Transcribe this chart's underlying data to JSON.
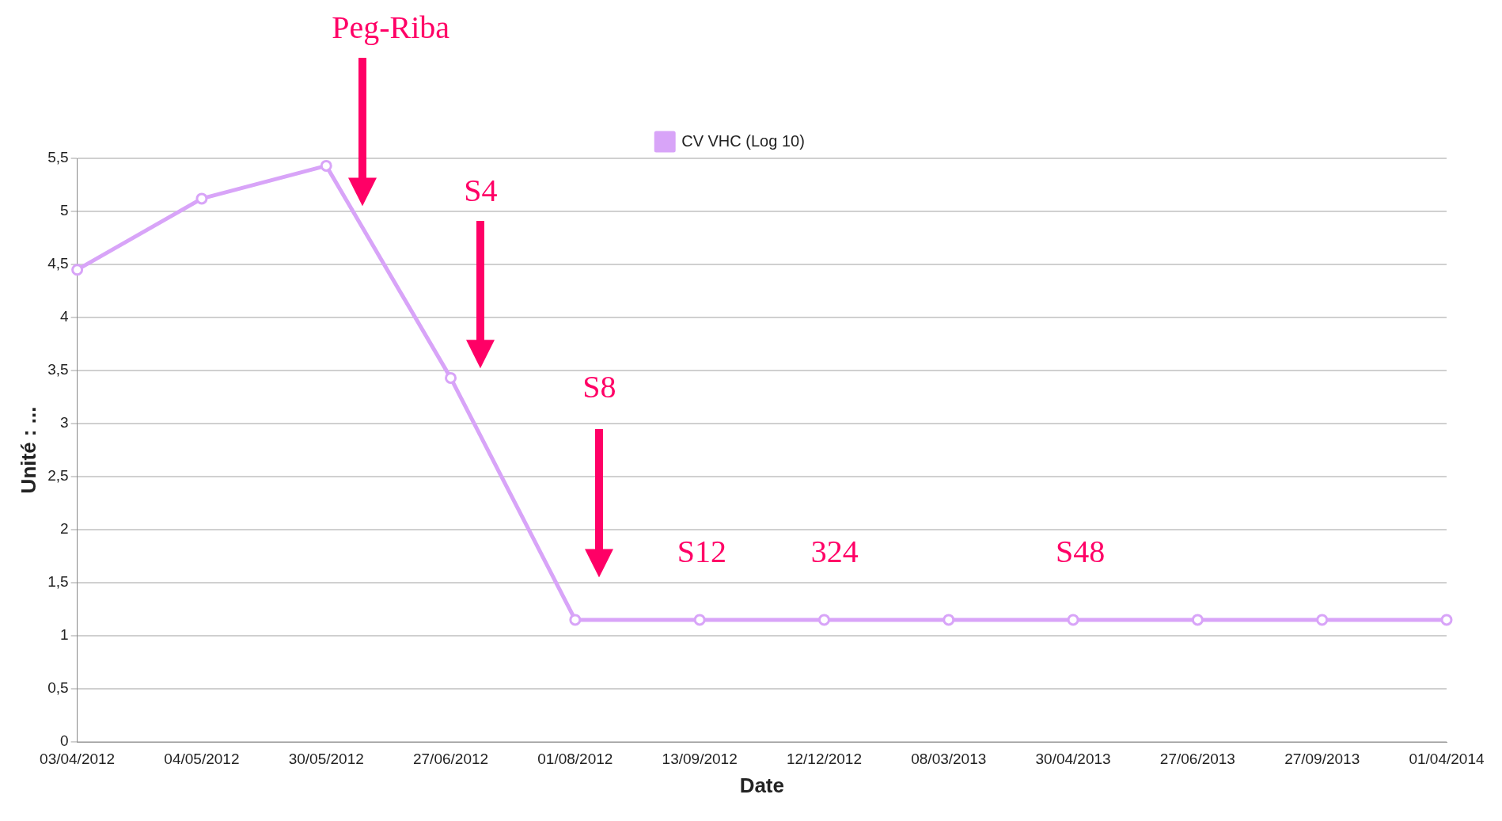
{
  "chart_data": {
    "type": "line",
    "xlabel": "Date",
    "ylabel": "Unité : ...",
    "categories": [
      "03/04/2012",
      "04/05/2012",
      "30/05/2012",
      "27/06/2012",
      "01/08/2012",
      "13/09/2012",
      "12/12/2012",
      "08/03/2013",
      "30/04/2013",
      "27/06/2013",
      "27/09/2013",
      "01/04/2014"
    ],
    "series": [
      {
        "name": "CV VHC (Log 10)",
        "color": "#d8a4f8",
        "values": [
          4.45,
          5.12,
          5.43,
          3.43,
          1.15,
          1.15,
          1.15,
          1.15,
          1.15,
          1.15,
          1.15,
          1.15
        ]
      }
    ],
    "ylim": [
      0,
      5.5
    ],
    "yticks": [
      0,
      {
        "value": 0.5,
        "label": "0,5"
      },
      1,
      {
        "value": 1.5,
        "label": "1,5"
      },
      2,
      {
        "value": 2.5,
        "label": "2,5"
      },
      3,
      {
        "value": 3.5,
        "label": "3,5"
      },
      4,
      {
        "value": 4.5,
        "label": "4,5"
      },
      5,
      {
        "value": 5.5,
        "label": "5,5"
      }
    ],
    "grid": "y",
    "legend": "top",
    "marker": "circle",
    "line_style": "solid",
    "annotations": [
      "Peg-Riba",
      "S4",
      "S8",
      "S12",
      "324",
      "S48"
    ]
  }
}
